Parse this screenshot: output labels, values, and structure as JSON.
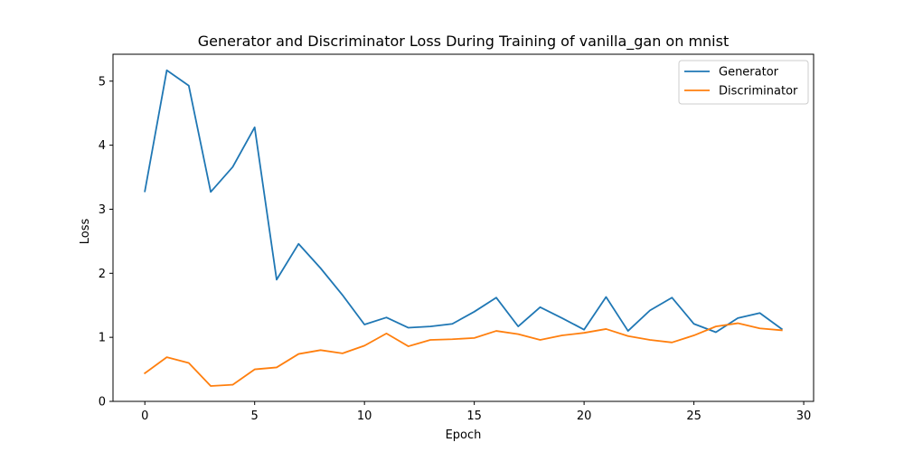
{
  "chart_data": {
    "type": "line",
    "title": "Generator and Discriminator Loss During Training of vanilla_gan on mnist",
    "xlabel": "Epoch",
    "ylabel": "Loss",
    "xlim": [
      -1.45,
      30.45
    ],
    "ylim": [
      0,
      5.42
    ],
    "x_ticks": [
      0,
      5,
      10,
      15,
      20,
      25,
      30
    ],
    "y_ticks": [
      0,
      1,
      2,
      3,
      4,
      5
    ],
    "grid": false,
    "legend_position": "upper right",
    "x": [
      0,
      1,
      2,
      3,
      4,
      5,
      6,
      7,
      8,
      9,
      10,
      11,
      12,
      13,
      14,
      15,
      16,
      17,
      18,
      19,
      20,
      21,
      22,
      23,
      24,
      25,
      26,
      27,
      28,
      29
    ],
    "series": [
      {
        "name": "Generator",
        "color": "#1f77b4",
        "values": [
          3.28,
          5.17,
          4.93,
          3.27,
          3.66,
          4.28,
          1.9,
          2.46,
          2.08,
          1.66,
          1.2,
          1.31,
          1.15,
          1.17,
          1.21,
          1.4,
          1.62,
          1.17,
          1.47,
          1.3,
          1.12,
          1.63,
          1.1,
          1.42,
          1.62,
          1.21,
          1.08,
          1.3,
          1.38,
          1.13
        ]
      },
      {
        "name": "Discriminator",
        "color": "#ff7f0e",
        "values": [
          0.44,
          0.69,
          0.6,
          0.24,
          0.26,
          0.5,
          0.53,
          0.74,
          0.8,
          0.75,
          0.87,
          1.06,
          0.86,
          0.96,
          0.97,
          0.99,
          1.1,
          1.05,
          0.96,
          1.03,
          1.07,
          1.13,
          1.02,
          0.96,
          0.92,
          1.03,
          1.17,
          1.22,
          1.14,
          1.11
        ]
      }
    ]
  }
}
